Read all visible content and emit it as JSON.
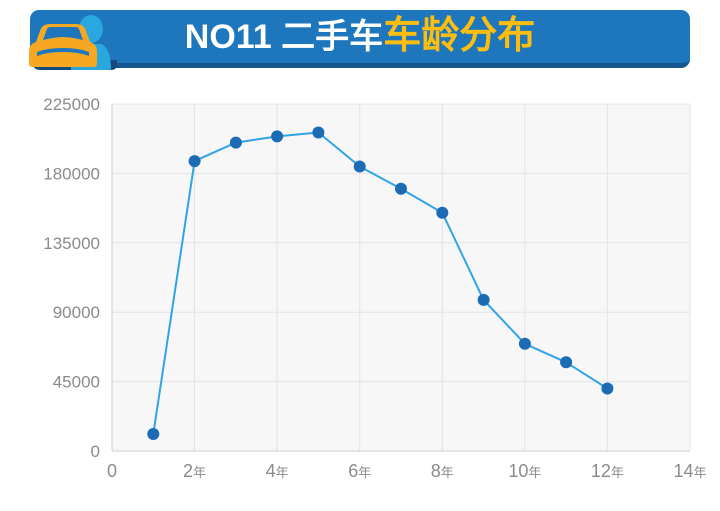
{
  "header": {
    "title_prefix": "NO11 二手车",
    "title_highlight": "车龄分布",
    "banner_color": "#1E76BC",
    "banner_edge_color": "#15578E",
    "title_prefix_color": "#FFFFFF",
    "title_highlight_color": "#FDBE10",
    "icon_car_color": "#F7A823",
    "icon_person_color": "#29A8E0",
    "icon_shadow_color": "#164A7C"
  },
  "chart_data": {
    "type": "line",
    "title": "NO11 二手车车龄分布",
    "xlabel": "",
    "ylabel": "",
    "x": [
      1,
      2,
      3,
      4,
      5,
      6,
      7,
      8,
      9,
      10,
      11,
      12
    ],
    "values": [
      11000,
      188000,
      200000,
      204000,
      206500,
      184500,
      170000,
      154500,
      98000,
      69500,
      57500,
      40500
    ],
    "x_unit_suffix": "年",
    "xlim": [
      0,
      14
    ],
    "ylim": [
      0,
      225000
    ],
    "x_ticks": [
      {
        "value": 0,
        "label": "0"
      },
      {
        "value": 2,
        "label": "2年"
      },
      {
        "value": 4,
        "label": "4年"
      },
      {
        "value": 6,
        "label": "6年"
      },
      {
        "value": 8,
        "label": "8年"
      },
      {
        "value": 10,
        "label": "10年"
      },
      {
        "value": 12,
        "label": "12年"
      },
      {
        "value": 14,
        "label": "14年"
      }
    ],
    "y_ticks": [
      {
        "value": 0,
        "label": "0"
      },
      {
        "value": 45000,
        "label": "45000"
      },
      {
        "value": 90000,
        "label": "90000"
      },
      {
        "value": 135000,
        "label": "135000"
      },
      {
        "value": 180000,
        "label": "180000"
      },
      {
        "value": 225000,
        "label": "225000"
      }
    ],
    "grid": true,
    "legend": "none",
    "line_color": "#2FA4E7",
    "point_color": "#1B6CB5",
    "point_radius": 6,
    "plot_bg": "#F7F7F8",
    "grid_color": "#E4E4E6",
    "axis_line_color": "#CCCCCE",
    "axis_label_color": "#8B8B8B"
  }
}
